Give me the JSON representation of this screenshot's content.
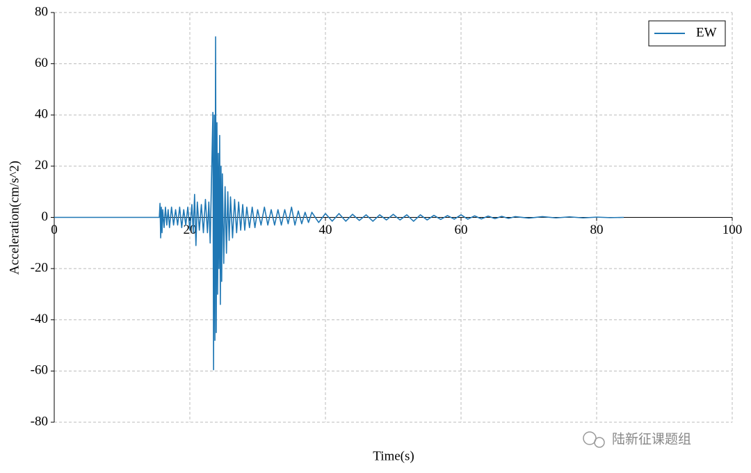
{
  "chart_data": {
    "type": "line",
    "xlabel": "Time(s)",
    "ylabel": "Acceleration(cm/s^2)",
    "watermark": "陆新征课题组",
    "x": [
      0,
      15.5,
      15.6,
      15.7,
      15.8,
      15.9,
      16.0,
      16.2,
      16.4,
      16.6,
      16.8,
      17.0,
      17.3,
      17.6,
      17.9,
      18.2,
      18.5,
      18.8,
      19.1,
      19.4,
      19.7,
      20.0,
      20.3,
      20.5,
      20.7,
      20.9,
      21.1,
      21.4,
      21.7,
      22.0,
      22.3,
      22.6,
      22.8,
      23.0,
      23.2,
      23.4,
      23.5,
      23.6,
      23.7,
      23.8,
      23.9,
      24.0,
      24.1,
      24.2,
      24.3,
      24.4,
      24.5,
      24.6,
      24.7,
      24.8,
      25.0,
      25.2,
      25.4,
      25.6,
      25.8,
      26.0,
      26.3,
      26.6,
      26.9,
      27.2,
      27.5,
      27.8,
      28.1,
      28.4,
      28.8,
      29.2,
      29.6,
      30.0,
      30.5,
      31.0,
      31.5,
      32.0,
      32.5,
      33.0,
      33.5,
      34.0,
      34.5,
      35.0,
      35.5,
      36.0,
      36.5,
      37.0,
      37.5,
      38.0,
      39,
      40,
      41,
      42,
      43,
      44,
      45,
      46,
      47,
      48,
      49,
      50,
      51,
      52,
      53,
      54,
      55,
      56,
      57,
      58,
      59,
      60,
      61,
      62,
      63,
      64,
      65,
      66,
      67,
      68,
      70,
      72,
      74,
      76,
      78,
      80,
      82,
      84
    ],
    "series": [
      {
        "name": "EW",
        "color": "#1f77b4",
        "values": [
          0,
          0,
          5.5,
          -8,
          4,
          -6,
          3,
          -4,
          4,
          -3,
          3,
          -4,
          4,
          -3,
          3,
          -3,
          4,
          -4,
          3,
          -3,
          4,
          -5,
          5,
          -6,
          9,
          -11,
          6,
          -5,
          5,
          -6,
          7,
          -6,
          6,
          -10,
          15,
          41,
          -59.5,
          40,
          -48,
          70.5,
          -45,
          37,
          -30,
          25,
          -20,
          32,
          -34,
          20,
          -25,
          17,
          -18,
          12,
          -14,
          10,
          -9,
          8,
          -8,
          7,
          -6,
          6,
          -5,
          5,
          -5,
          4,
          -4,
          4,
          -4,
          3,
          -3,
          4,
          -3,
          3,
          -3,
          3,
          -3,
          3,
          -2.5,
          4,
          -3,
          2.5,
          -2.5,
          2,
          -2,
          2,
          -2,
          1.5,
          -1.5,
          1.5,
          -1.5,
          1.2,
          -1.2,
          1,
          -1.5,
          1,
          -1,
          1.2,
          -1,
          1,
          -1.5,
          1,
          -1,
          0.8,
          -0.8,
          0.7,
          -0.7,
          1,
          -0.7,
          0.6,
          -0.6,
          0.5,
          -0.5,
          0.4,
          -0.4,
          0.3,
          -0.3,
          0.3,
          -0.2,
          0.2,
          -0.2,
          0.1,
          -0.1,
          0
        ]
      }
    ],
    "xlim": [
      0,
      100
    ],
    "xticks": [
      0,
      20,
      40,
      60,
      80,
      100
    ],
    "ylim": [
      -80,
      80
    ],
    "yticks": [
      -80,
      -60,
      -40,
      -20,
      0,
      20,
      40,
      60,
      80
    ],
    "grid": true,
    "legend": "upper right"
  }
}
